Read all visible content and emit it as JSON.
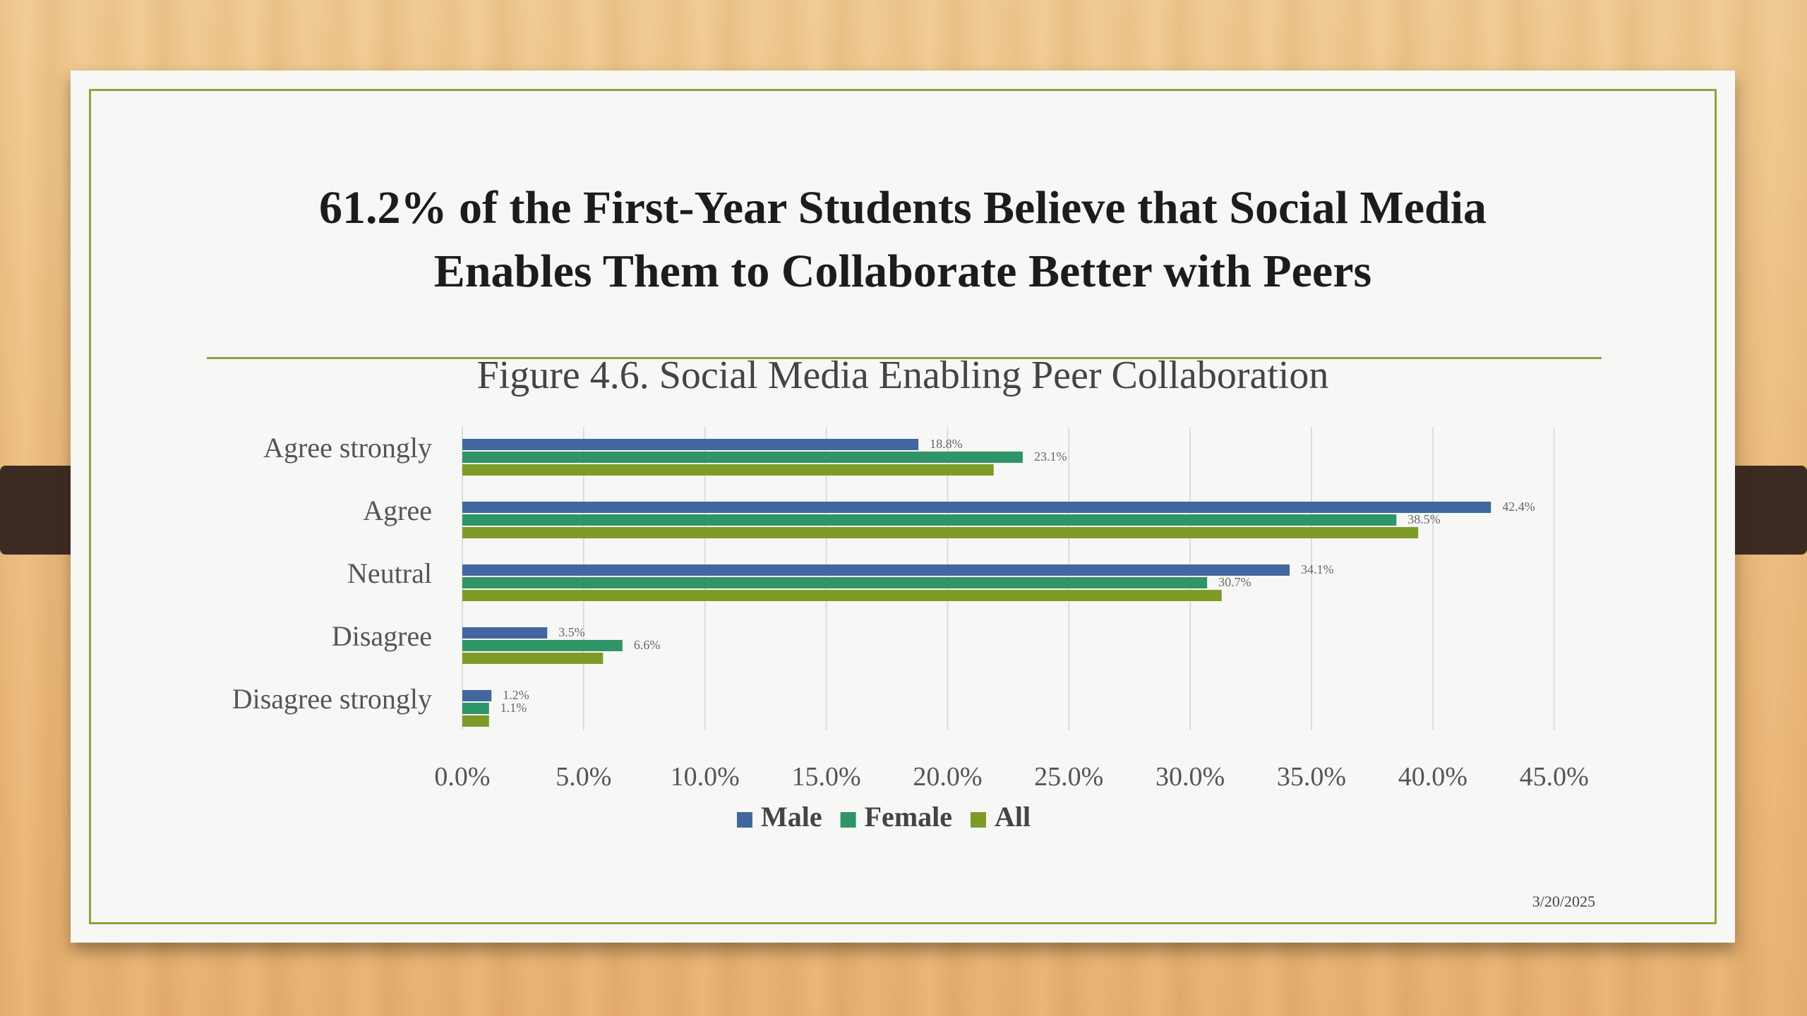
{
  "slide": {
    "title_lines": [
      "61.2% of  the First-Year Students Believe that Social Media",
      "Enables Them to Collaborate Better with Peers"
    ],
    "date": "3/20/2025"
  },
  "chart_data": {
    "type": "bar",
    "orientation": "horizontal",
    "title": "Figure 4.6. Social Media Enabling Peer Collaboration",
    "categories": [
      "Agree strongly",
      "Agree",
      "Neutral",
      "Disagree",
      "Disagree strongly"
    ],
    "series": [
      {
        "name": "Male",
        "color": "#41679e",
        "values": [
          18.8,
          42.4,
          34.1,
          3.5,
          1.2
        ],
        "labels": [
          "18.8%",
          "42.4%",
          "34.1%",
          "3.5%",
          "1.2%"
        ]
      },
      {
        "name": "Female",
        "color": "#2f9467",
        "values": [
          23.1,
          38.5,
          30.7,
          6.6,
          1.1
        ],
        "labels": [
          "23.1%",
          "38.5%",
          "30.7%",
          "6.6%",
          "1.1%"
        ]
      },
      {
        "name": "All",
        "color": "#7e9b27",
        "values": [
          21.9,
          39.4,
          31.3,
          5.8,
          1.1
        ],
        "labels": [
          "",
          "",
          "",
          "",
          ""
        ]
      }
    ],
    "xlim": [
      0,
      45
    ],
    "xticks": [
      "0.0%",
      "5.0%",
      "10.0%",
      "15.0%",
      "20.0%",
      "25.0%",
      "30.0%",
      "35.0%",
      "40.0%",
      "45.0%"
    ],
    "grid": true,
    "legend": "bottom"
  }
}
